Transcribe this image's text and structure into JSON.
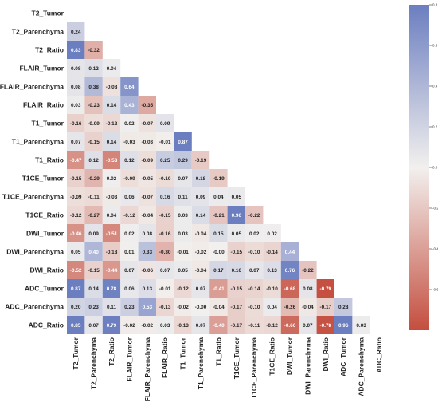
{
  "colors": {
    "negative": "#c44e3f",
    "neutral": "#f2f0ee",
    "positive": "#6b7ec0",
    "background": "#ffffff"
  },
  "chart_data": {
    "type": "heatmap",
    "title": "",
    "variables": [
      "T2_Tumor",
      "T2_Parenchyma",
      "T2_Ratio",
      "FLAIR_Tumor",
      "FLAIR_Parenchyma",
      "FLAIR_Ratio",
      "T1_Tumor",
      "T1_Parenchyma",
      "T1_Ratio",
      "T1CE_Tumor",
      "T1CE_Parenchyma",
      "T1CE_Ratio",
      "DWI_Tumor",
      "DWI_Parenchyma",
      "DWI_Ratio",
      "ADC_Tumor",
      "ADC_Parenchyma",
      "ADC_Ratio"
    ],
    "matrix_shape": "lower-triangle",
    "lower_triangle": [
      [],
      [
        0.24
      ],
      [
        0.83,
        -0.32
      ],
      [
        0.08,
        0.12,
        0.04
      ],
      [
        0.08,
        0.38,
        -0.08,
        0.64
      ],
      [
        0.03,
        -0.23,
        0.14,
        0.43,
        -0.35
      ],
      [
        -0.16,
        -0.09,
        -0.12,
        0.02,
        -0.07,
        0.09
      ],
      [
        0.07,
        -0.15,
        0.14,
        -0.03,
        -0.03,
        -0.01,
        0.87
      ],
      [
        -0.47,
        0.12,
        -0.53,
        0.12,
        -0.09,
        0.25,
        0.29,
        -0.19
      ],
      [
        -0.15,
        -0.29,
        0.02,
        -0.09,
        -0.05,
        -0.1,
        0.07,
        0.18,
        -0.19
      ],
      [
        -0.09,
        -0.11,
        -0.03,
        0.06,
        -0.07,
        0.16,
        0.11,
        0.09,
        0.04,
        0.05
      ],
      [
        -0.12,
        -0.27,
        0.04,
        -0.12,
        -0.04,
        -0.15,
        0.03,
        0.14,
        -0.21,
        0.96,
        -0.22
      ],
      [
        -0.46,
        0.09,
        -0.51,
        0.02,
        0.08,
        -0.16,
        0.03,
        -0.04,
        0.15,
        0.05,
        0.02,
        0.02
      ],
      [
        0.05,
        0.4,
        -0.18,
        0.01,
        0.33,
        -0.3,
        -0.01,
        -0.02,
        -0.0,
        -0.15,
        -0.1,
        -0.14,
        0.44
      ],
      [
        -0.52,
        -0.15,
        -0.44,
        0.07,
        -0.06,
        0.07,
        0.05,
        -0.04,
        0.17,
        0.16,
        0.07,
        0.13,
        0.76,
        -0.22
      ],
      [
        0.87,
        0.14,
        0.78,
        0.06,
        0.13,
        -0.01,
        -0.12,
        0.07,
        -0.41,
        -0.15,
        -0.14,
        -0.1,
        -0.68,
        0.08,
        -0.79
      ],
      [
        0.2,
        0.23,
        0.11,
        0.23,
        0.53,
        -0.13,
        -0.02,
        -0.0,
        -0.04,
        -0.17,
        -0.1,
        0.04,
        -0.26,
        -0.04,
        -0.17,
        0.28
      ],
      [
        0.85,
        0.07,
        0.79,
        -0.02,
        -0.02,
        0.03,
        -0.13,
        0.07,
        -0.4,
        -0.17,
        -0.11,
        -0.12,
        -0.66,
        0.07,
        -0.78,
        0.96,
        0.03
      ]
    ],
    "value_format": "two decimals",
    "colorbar": {
      "range": [
        -0.8,
        0.8
      ],
      "ticks": [
        "0.8",
        "0.6",
        "0.4",
        "0.2",
        "0.0",
        "-0.2",
        "-0.4",
        "-0.6"
      ]
    }
  }
}
